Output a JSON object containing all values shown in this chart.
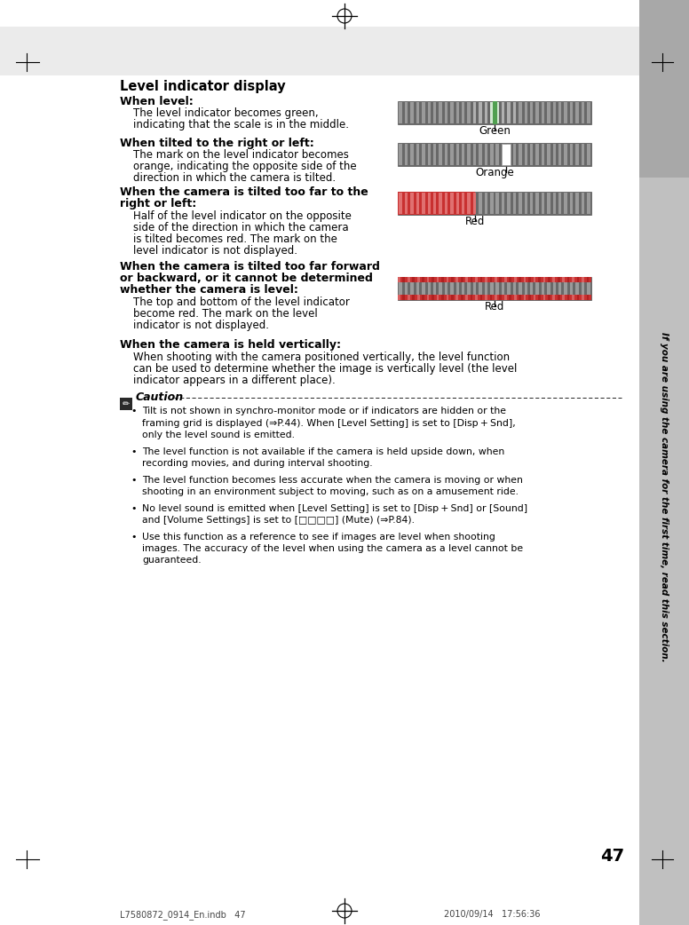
{
  "page_bg": "#e8e8e8",
  "content_bg": "#ffffff",
  "title": "Level indicator display",
  "page_number": "47",
  "footer_left": "L7580872_0914_En.indb   47",
  "footer_right": "2010/09/14   17:56:36",
  "sidebar_text": "If you are using the camera for the first time, read this section.",
  "sec1_heading": "When level:",
  "sec1_body1": "The level indicator becomes green,",
  "sec1_body2": "indicating that the scale is in the middle.",
  "sec1_label": "Green",
  "sec2_heading": "When tilted to the right or left:",
  "sec2_body1": "The mark on the level indicator becomes",
  "sec2_body2": "orange, indicating the opposite side of the",
  "sec2_body3": "direction in which the camera is tilted.",
  "sec2_label": "Orange",
  "sec3_heading1": "When the camera is tilted too far to the",
  "sec3_heading2": "right or left:",
  "sec3_body1": "Half of the level indicator on the opposite",
  "sec3_body2": "side of the direction in which the camera",
  "sec3_body3": "is tilted becomes red. The mark on the",
  "sec3_body4": "level indicator is not displayed.",
  "sec3_label": "Red",
  "sec4_heading1": "When the camera is tilted too far forward",
  "sec4_heading2": "or backward, or it cannot be determined",
  "sec4_heading3": "whether the camera is level:",
  "sec4_body1": "The top and bottom of the level indicator",
  "sec4_body2": "become red. The mark on the level",
  "sec4_body3": "indicator is not displayed.",
  "sec4_label": "Red",
  "sec5_heading": "When the camera is held vertically:",
  "sec5_body1": "When shooting with the camera positioned vertically, the level function",
  "sec5_body2": "can be used to determine whether the image is vertically level (the level",
  "sec5_body3": "indicator appears in a different place).",
  "caution_title": "Caution",
  "caution1_line1": "Tilt is not shown in synchro-monitor mode or if indicators are hidden or the",
  "caution1_line2": "framing grid is displayed (⇒P.44). When [Level Setting] is set to [Disp + Snd],",
  "caution1_line3": "only the level sound is emitted.",
  "caution2_line1": "The level function is not available if the camera is held upside down, when",
  "caution2_line2": "recording movies, and during interval shooting.",
  "caution3_line1": "The level function becomes less accurate when the camera is moving or when",
  "caution3_line2": "shooting in an environment subject to moving, such as on a amusement ride.",
  "caution4_line1": "No level sound is emitted when [Level Setting] is set to [Disp + Snd] or [Sound]",
  "caution4_line2": "and [Volume Settings] is set to [□□□□] (Mute) (⇒P.84).",
  "caution5_line1": "Use this function as a reference to see if images are level when shooting",
  "caution5_line2": "images. The accuracy of the level when using the camera as a level cannot be",
  "caution5_line3": "guaranteed."
}
